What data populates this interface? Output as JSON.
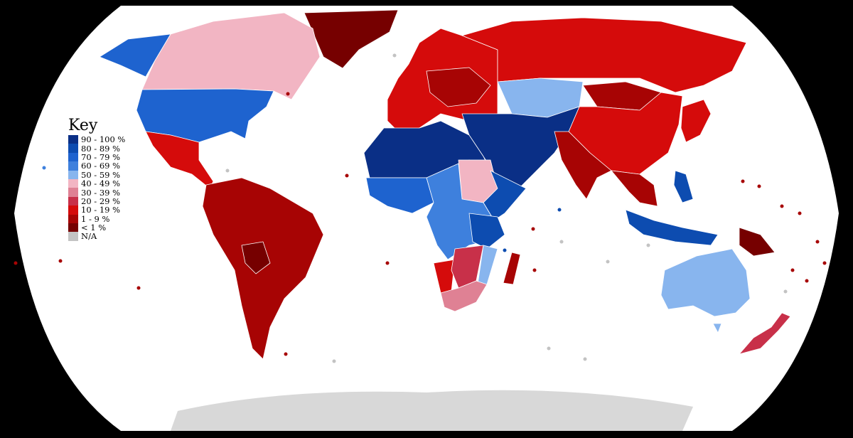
{
  "legend": {
    "title": "Key",
    "items": [
      {
        "label": "90 - 100 %",
        "color": "#0a2f86"
      },
      {
        "label": "80 - 89 %",
        "color": "#0d4cb0"
      },
      {
        "label": "70 - 79 %",
        "color": "#1e63cf"
      },
      {
        "label": "60 - 69 %",
        "color": "#3e80dd"
      },
      {
        "label": "50 - 59 %",
        "color": "#88b5ee"
      },
      {
        "label": "40 - 49 %",
        "color": "#f2b5c3"
      },
      {
        "label": "30 - 39 %",
        "color": "#df8194"
      },
      {
        "label": "20 - 29 %",
        "color": "#c83049"
      },
      {
        "label": "10 - 19 %",
        "color": "#d50b0b"
      },
      {
        "label": "1 - 9 %",
        "color": "#a70404"
      },
      {
        "label": "< 1 %",
        "color": "#760000"
      },
      {
        "label": "N/A",
        "color": "#c3c3c3"
      }
    ]
  },
  "colors": {
    "ocean": "#ffffff",
    "background": "#000000",
    "border": "#ffffff"
  }
}
